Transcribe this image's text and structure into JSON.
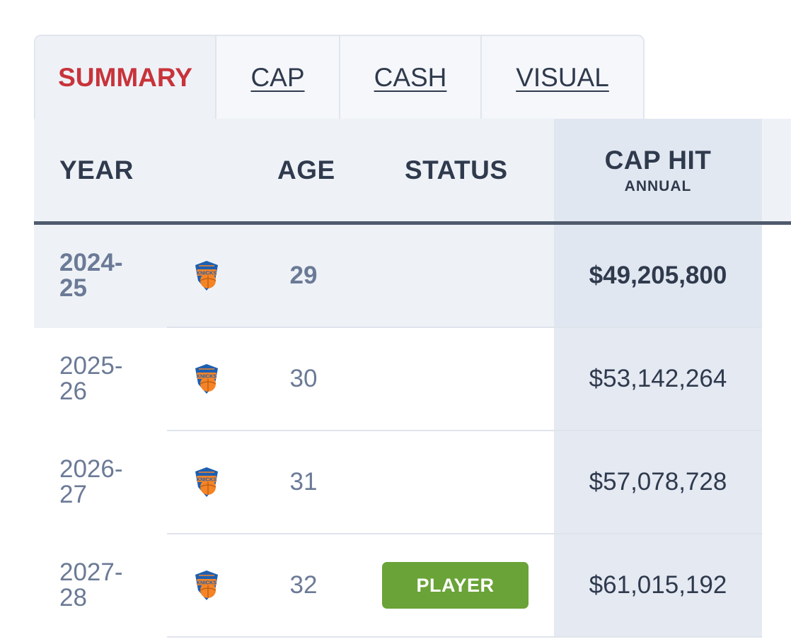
{
  "tabs": [
    {
      "label": "SUMMARY",
      "active": true
    },
    {
      "label": "CAP",
      "active": false
    },
    {
      "label": "CASH",
      "active": false
    },
    {
      "label": "VISUAL",
      "active": false
    }
  ],
  "table": {
    "headers": {
      "year": "YEAR",
      "age": "AGE",
      "status": "STATUS",
      "cap_hit": "CAP HIT",
      "cap_hit_sub": "ANNUAL"
    },
    "rows": [
      {
        "year_line1": "2024-",
        "year_line2": "25",
        "team_logo": "knicks-logo-icon",
        "age": "29",
        "status": "",
        "cap_hit": "$49,205,800",
        "current": true
      },
      {
        "year_line1": "2025-",
        "year_line2": "26",
        "team_logo": "knicks-logo-icon",
        "age": "30",
        "status": "",
        "cap_hit": "$53,142,264",
        "current": false
      },
      {
        "year_line1": "2026-",
        "year_line2": "27",
        "team_logo": "knicks-logo-icon",
        "age": "31",
        "status": "",
        "cap_hit": "$57,078,728",
        "current": false
      },
      {
        "year_line1": "2027-",
        "year_line2": "28",
        "team_logo": "knicks-logo-icon",
        "age": "32",
        "status": "PLAYER",
        "cap_hit": "$61,015,192",
        "current": false
      }
    ]
  },
  "colors": {
    "active_tab": "#c8333a",
    "player_option_badge": "#6aa337",
    "header_text": "#2f3a4d",
    "muted_text": "#6b7a96"
  }
}
